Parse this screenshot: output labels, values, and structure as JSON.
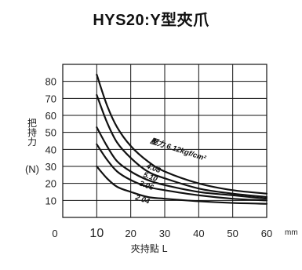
{
  "title": "HYS20:Y型夾爪",
  "chart_data": {
    "type": "line",
    "ylabel_chars": [
      "把",
      "持",
      "力"
    ],
    "ylabel_unit": "(N)",
    "xlabel": "夾持點 L",
    "x_unit": "mm",
    "xlim": [
      0,
      60
    ],
    "ylim": [
      0,
      90
    ],
    "x_ticks": [
      0,
      10,
      20,
      30,
      40,
      50,
      60
    ],
    "y_ticks": [
      10,
      20,
      30,
      40,
      50,
      60,
      70,
      80
    ],
    "grid": true,
    "series": [
      {
        "name": "壓力 6.12kgf/cm²",
        "x": [
          10,
          13,
          16,
          20,
          25,
          30,
          40,
          50,
          60
        ],
        "y": [
          84,
          66,
          53,
          42,
          33,
          27,
          20,
          16,
          14
        ]
      },
      {
        "name": "4.08",
        "x": [
          10,
          13,
          16,
          20,
          25,
          30,
          40,
          50,
          60
        ],
        "y": [
          72,
          56,
          44,
          35,
          27,
          23,
          17,
          14,
          12
        ]
      },
      {
        "name": "5.10",
        "x": [
          10,
          13,
          16,
          20,
          25,
          30,
          40,
          50,
          60
        ],
        "y": [
          53,
          42,
          33,
          27,
          22,
          19,
          15,
          13,
          11
        ]
      },
      {
        "name": "3.06",
        "x": [
          10,
          13,
          16,
          20,
          25,
          30,
          40,
          50,
          60
        ],
        "y": [
          43,
          34,
          27,
          22,
          18,
          16,
          13,
          11,
          10
        ]
      },
      {
        "name": "2.04",
        "x": [
          10,
          13,
          16,
          20,
          25,
          30,
          40,
          50,
          60
        ],
        "y": [
          30,
          23,
          18,
          15,
          12,
          11,
          9.5,
          8.5,
          8
        ]
      }
    ],
    "labels": [
      {
        "series": 0,
        "text": "壓力 6.12kgf/cm²"
      },
      {
        "series": 1,
        "text": "4.08"
      },
      {
        "series": 2,
        "text": "5.10"
      },
      {
        "series": 3,
        "text": "3.06"
      },
      {
        "series": 4,
        "text": "2.04"
      }
    ]
  }
}
